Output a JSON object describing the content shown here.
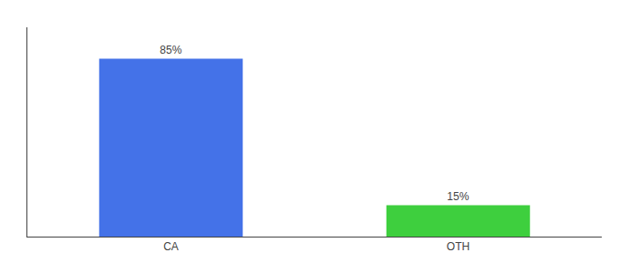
{
  "chart_data": {
    "type": "bar",
    "categories": [
      "CA",
      "OTH"
    ],
    "values": [
      85,
      15
    ],
    "colors": [
      "#4472e8",
      "#3ecf3e"
    ],
    "data_labels": true,
    "value_labels": [
      "85%",
      "15%"
    ],
    "ylim": [
      0,
      100
    ],
    "grid": false,
    "tick_labels": "x"
  }
}
